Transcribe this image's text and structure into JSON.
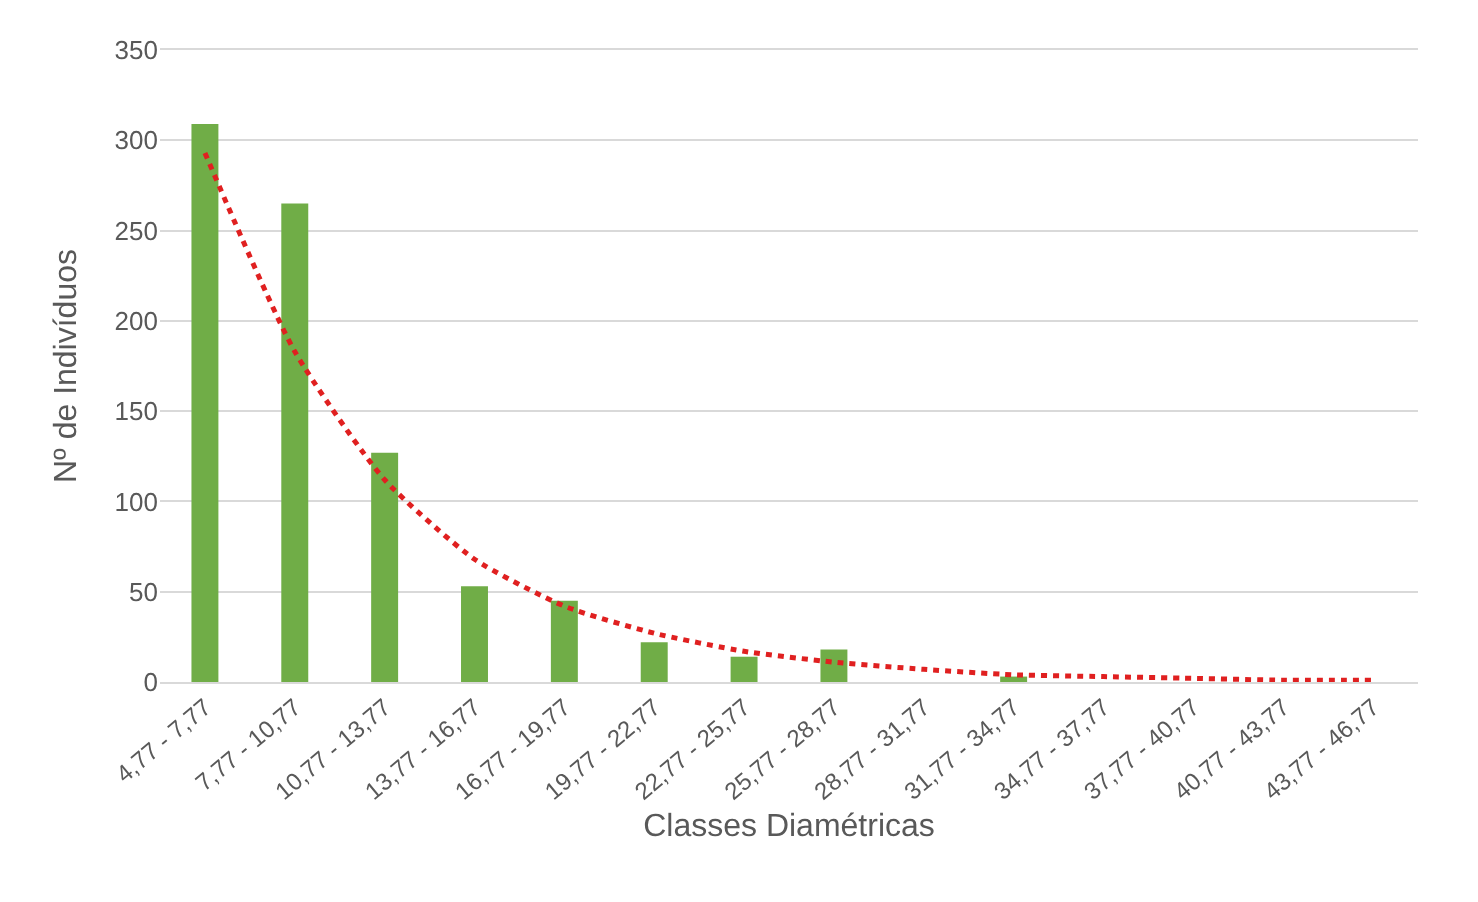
{
  "chart_data": {
    "type": "bar",
    "xlabel": "Classes Diamétricas",
    "ylabel": "Nº de Indivíduos",
    "categories": [
      "4,77 - 7,77",
      "7,77 - 10,77",
      "10,77 - 13,77",
      "13,77 - 16,77",
      "16,77 - 19,77",
      "19,77 - 22,77",
      "22,77 - 25,77",
      "25,77 - 28,77",
      "28,77 - 31,77",
      "31,77 - 34,77",
      "34,77 - 37,77",
      "37,77 - 40,77",
      "40,77 - 43,77",
      "43,77 - 46,77"
    ],
    "series": [
      {
        "color": "#70ad47",
        "values": [
          309,
          265,
          127,
          53,
          45,
          22,
          14,
          18,
          0,
          3,
          0,
          0,
          0,
          0
        ]
      },
      {
        "type": "line",
        "color": "#e02020",
        "line_style": "dotted",
        "values": [
          293,
          183,
          112,
          68,
          42,
          27,
          17,
          11,
          7,
          4,
          3,
          2,
          1,
          1
        ]
      }
    ],
    "ylim": [
      0,
      350
    ],
    "yticks": [
      0,
      50,
      100,
      150,
      200,
      250,
      300,
      350
    ],
    "grid": "y"
  }
}
